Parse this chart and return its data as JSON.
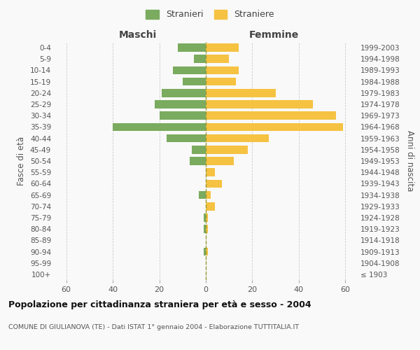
{
  "age_groups": [
    "100+",
    "95-99",
    "90-94",
    "85-89",
    "80-84",
    "75-79",
    "70-74",
    "65-69",
    "60-64",
    "55-59",
    "50-54",
    "45-49",
    "40-44",
    "35-39",
    "30-34",
    "25-29",
    "20-24",
    "15-19",
    "10-14",
    "5-9",
    "0-4"
  ],
  "birth_years": [
    "≤ 1903",
    "1904-1908",
    "1909-1913",
    "1914-1918",
    "1919-1923",
    "1924-1928",
    "1929-1933",
    "1934-1938",
    "1939-1943",
    "1944-1948",
    "1949-1953",
    "1954-1958",
    "1959-1963",
    "1964-1968",
    "1969-1973",
    "1974-1978",
    "1979-1983",
    "1984-1988",
    "1989-1993",
    "1994-1998",
    "1999-2003"
  ],
  "males": [
    0,
    0,
    1,
    0,
    1,
    1,
    0,
    3,
    0,
    0,
    7,
    6,
    17,
    40,
    20,
    22,
    19,
    10,
    14,
    5,
    12
  ],
  "females": [
    0,
    0,
    1,
    0,
    1,
    1,
    4,
    2,
    7,
    4,
    12,
    18,
    27,
    59,
    56,
    46,
    30,
    13,
    14,
    10,
    14
  ],
  "male_color": "#7aab5f",
  "female_color": "#f5c242",
  "grid_color": "#cccccc",
  "title": "Popolazione per cittadinanza straniera per età e sesso - 2004",
  "subtitle": "COMUNE DI GIULIANOVA (TE) - Dati ISTAT 1° gennaio 2004 - Elaborazione TUTTITALIA.IT",
  "xlabel_left": "Maschi",
  "xlabel_right": "Femmine",
  "ylabel_left": "Fasce di età",
  "ylabel_right": "Anni di nascita",
  "xlim": 65,
  "legend_stranieri": "Stranieri",
  "legend_straniere": "Straniere",
  "background_color": "#f9f9f9"
}
